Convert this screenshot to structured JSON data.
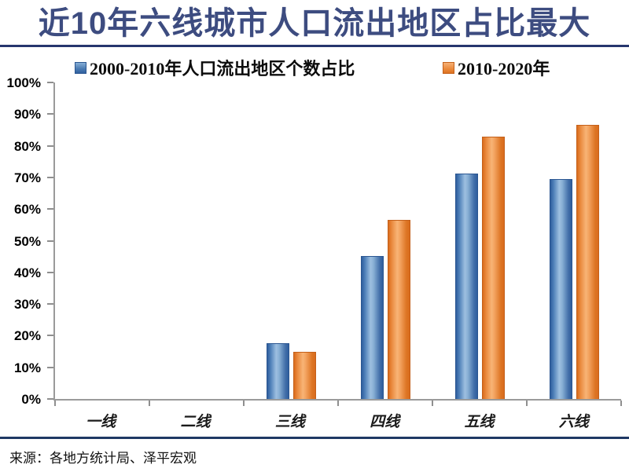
{
  "header": {
    "title": "近10年六线城市人口流出地区占比最大",
    "title_color": "#3d4c80",
    "underline_color": "#26366e"
  },
  "chart_data": {
    "type": "bar",
    "title": "近10年六线城市人口流出地区占比最大",
    "categories": [
      "一线",
      "二线",
      "三线",
      "四线",
      "五线",
      "六线"
    ],
    "series": [
      {
        "name": "2000-2010年人口流出地区个数占比",
        "color": "#3f6ea9",
        "values": [
          0,
          0,
          17.5,
          45.1,
          71.3,
          69.6
        ]
      },
      {
        "name": "2010-2020年",
        "color": "#e8852f",
        "values": [
          0,
          0,
          14.8,
          56.6,
          82.9,
          86.5
        ]
      }
    ],
    "xlabel": "",
    "ylabel": "",
    "ylim": [
      0,
      100
    ],
    "y_ticks": [
      "100%",
      "90%",
      "80%",
      "70%",
      "60%",
      "50%",
      "40%",
      "30%",
      "20%",
      "10%",
      "0%"
    ],
    "grid": false,
    "legend_position": "top",
    "axis_color": "#9a9a9a"
  },
  "footer": {
    "rule_color": "#1f3864",
    "source": "来源：各地方统计局、泽平宏观"
  }
}
